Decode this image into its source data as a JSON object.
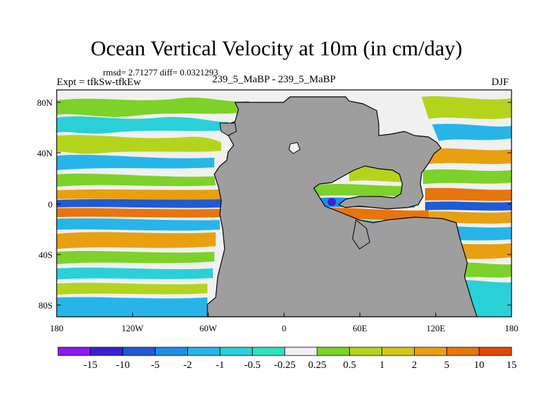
{
  "title": "Ocean Vertical Velocity at 10m (in cm/day)",
  "stats": "rmsd= 2.71277 diff= 0.0321293",
  "experiment": "Expt = tfkSw-tfkEw",
  "run_label": "239_5_MaBP - 239_5_MaBP",
  "season": "DJF",
  "lat_ticks": [
    "80N",
    "40N",
    "0",
    "40S",
    "80S"
  ],
  "lon_ticks": [
    "180",
    "120W",
    "60W",
    "0",
    "60E",
    "120E",
    "180"
  ],
  "colorbar": {
    "labels": [
      "-15",
      "-10",
      "-5",
      "-2",
      "-1",
      "-0.5",
      "-0.25",
      "0.25",
      "0.5",
      "1",
      "2",
      "5",
      "10",
      "15"
    ],
    "colors": [
      "#8a1cf0",
      "#3a22d4",
      "#1f5ad8",
      "#1f8de6",
      "#27b5e9",
      "#2ad0d8",
      "#30e0c0",
      "#f0f0f0",
      "#7cd228",
      "#b4d41c",
      "#d2c814",
      "#e8a010",
      "#e8740c",
      "#e04a08"
    ]
  },
  "land_color": "#9e9e9e",
  "ocean_neutral_color": "#f0f0f0"
}
